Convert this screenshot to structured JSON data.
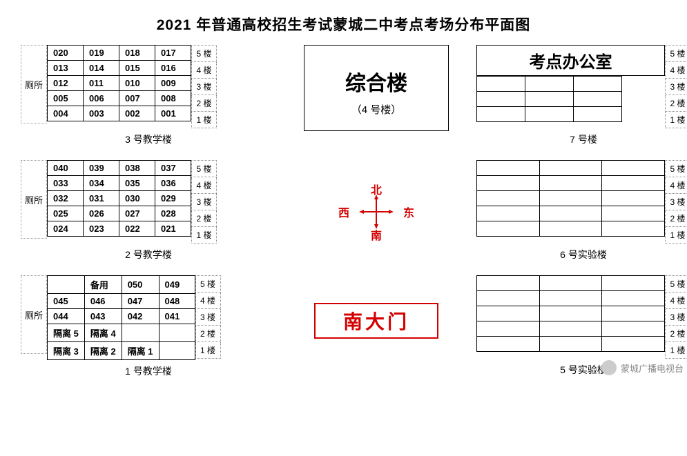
{
  "title": "2021 年普通高校招生考试蒙城二中考点考场分布平面图",
  "floors": [
    "5 楼",
    "4 楼",
    "3 楼",
    "2 楼",
    "1 楼"
  ],
  "toilet_label": "厕所",
  "buildings": {
    "b3": {
      "label": "3 号教学楼",
      "rows": [
        [
          "020",
          "019",
          "018",
          "017"
        ],
        [
          "013",
          "014",
          "015",
          "016"
        ],
        [
          "012",
          "011",
          "010",
          "009"
        ],
        [
          "005",
          "006",
          "007",
          "008"
        ],
        [
          "004",
          "003",
          "002",
          "001"
        ]
      ]
    },
    "b2": {
      "label": "2 号教学楼",
      "rows": [
        [
          "040",
          "039",
          "038",
          "037"
        ],
        [
          "033",
          "034",
          "035",
          "036"
        ],
        [
          "032",
          "031",
          "030",
          "029"
        ],
        [
          "025",
          "026",
          "027",
          "028"
        ],
        [
          "024",
          "023",
          "022",
          "021"
        ]
      ]
    },
    "b1": {
      "label": "1 号教学楼",
      "rows": [
        [
          "",
          "备用",
          "050",
          "049"
        ],
        [
          "045",
          "046",
          "047",
          "048"
        ],
        [
          "044",
          "043",
          "042",
          "041"
        ],
        [
          "隔离 5",
          "隔离 4",
          "",
          ""
        ],
        [
          "隔离 3",
          "隔离 2",
          "隔离 1",
          ""
        ]
      ]
    }
  },
  "center": {
    "big": "综合楼",
    "sub": "（4 号楼）"
  },
  "compass": {
    "n": "北",
    "s": "南",
    "w": "西",
    "e": "东"
  },
  "gate": "南大门",
  "right": {
    "office": {
      "title": "考点办公室",
      "label": "7 号楼",
      "rows": 3,
      "cols": 3
    },
    "lab6": {
      "label": "6 号实验楼",
      "rows": 5,
      "cols": 3
    },
    "lab5": {
      "label": "5 号实验楼",
      "rows": 5,
      "cols": 3
    }
  },
  "watermark": "蒙城广播电视台",
  "colors": {
    "red": "#d40000",
    "border": "#000000",
    "dotted": "#999999"
  }
}
